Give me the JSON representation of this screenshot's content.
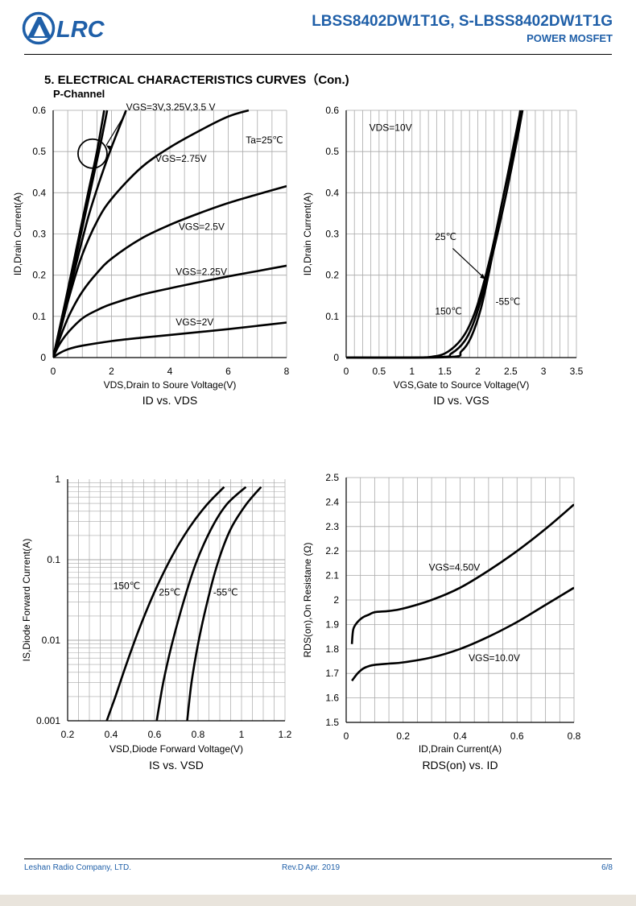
{
  "header": {
    "logo_text": "LRC",
    "part_title": "LBSS8402DW1T1G, S-LBSS8402DW1T1G",
    "subtitle": "POWER MOSFET"
  },
  "section_title": "5. ELECTRICAL CHARACTERISTICS CURVES（Con.)",
  "channel_label": "P-Channel",
  "colors": {
    "brand": "#1f5fa8",
    "grid": "#a9a9a9",
    "curve": "#000000",
    "footer_band": "#e9e4dc"
  },
  "footer": {
    "company": "Leshan Radio Company, LTD.",
    "revision": "Rev.D   Apr.   2019",
    "page": "6/8"
  },
  "chart_data": [
    {
      "id": "c1",
      "type": "line",
      "caption": "ID vs. VDS",
      "title": "",
      "xlabel": "VDS,Drain to Soure Voltage(V)",
      "ylabel": "ID,Drain Current(A)",
      "xlim": [
        0,
        8
      ],
      "ylim": [
        0,
        0.6
      ],
      "xticks": [
        0,
        2,
        4,
        6,
        8
      ],
      "yticks": [
        0,
        0.1,
        0.2,
        0.3,
        0.4,
        0.5,
        0.6
      ],
      "yscale": "linear",
      "grid": true,
      "series": [
        {
          "name": "VGS=2V",
          "x": [
            0,
            0.2,
            0.5,
            1,
            2,
            3,
            4,
            5,
            6,
            7,
            8
          ],
          "y": [
            0,
            0.01,
            0.02,
            0.029,
            0.04,
            0.048,
            0.055,
            0.062,
            0.069,
            0.077,
            0.085
          ]
        },
        {
          "name": "VGS=2.25V",
          "x": [
            0,
            0.2,
            0.5,
            1,
            1.5,
            2,
            3,
            4,
            5,
            6,
            7,
            8
          ],
          "y": [
            0,
            0.03,
            0.06,
            0.095,
            0.115,
            0.13,
            0.152,
            0.168,
            0.183,
            0.197,
            0.21,
            0.223
          ]
        },
        {
          "name": "VGS=2.5V",
          "x": [
            0,
            0.3,
            0.6,
            1,
            1.5,
            2,
            3,
            4,
            5,
            6,
            7,
            8
          ],
          "y": [
            0,
            0.06,
            0.11,
            0.16,
            0.205,
            0.24,
            0.288,
            0.322,
            0.35,
            0.375,
            0.396,
            0.416
          ]
        },
        {
          "name": "VGS=2.75V",
          "x": [
            0,
            0.3,
            0.6,
            1,
            1.5,
            2,
            3,
            4,
            5,
            6,
            6.7
          ],
          "y": [
            0,
            0.08,
            0.16,
            0.25,
            0.33,
            0.385,
            0.46,
            0.51,
            0.55,
            0.585,
            0.6
          ]
        },
        {
          "name": "VGS=3V",
          "x": [
            0,
            0.4,
            0.8,
            1.2,
            1.6,
            2,
            2.5
          ],
          "y": [
            0,
            0.115,
            0.23,
            0.34,
            0.43,
            0.51,
            0.6
          ]
        },
        {
          "name": "VGS=3.25V",
          "x": [
            0,
            0.4,
            0.8,
            1.2,
            1.6,
            1.85
          ],
          "y": [
            0,
            0.125,
            0.25,
            0.38,
            0.51,
            0.6
          ]
        },
        {
          "name": "VGS=3.5V",
          "x": [
            0,
            0.4,
            0.8,
            1.2,
            1.5,
            1.75
          ],
          "y": [
            0,
            0.13,
            0.265,
            0.4,
            0.5,
            0.6
          ]
        }
      ],
      "annotations": [
        {
          "text": "VGS=3V,3.25V,3.5 V",
          "x": 2.5,
          "y": 0.6
        },
        {
          "text": "Ta=25℃",
          "x": 6.6,
          "y": 0.52
        },
        {
          "text": "VGS=2.75V",
          "x": 3.5,
          "y": 0.475
        },
        {
          "text": "VGS=2.5V",
          "x": 4.3,
          "y": 0.31
        },
        {
          "text": "VGS=2.25V",
          "x": 4.2,
          "y": 0.2
        },
        {
          "text": "VGS=2V",
          "x": 4.2,
          "y": 0.078
        }
      ]
    },
    {
      "id": "c2",
      "type": "line",
      "caption": "ID vs. VGS",
      "title": "",
      "xlabel": "VGS,Gate to Source Voltage(V)",
      "ylabel": "ID,Drain Current(A)",
      "xlim": [
        0,
        3.5
      ],
      "ylim": [
        0,
        0.6
      ],
      "xticks": [
        0,
        0.5,
        1,
        1.5,
        2,
        2.5,
        3,
        3.5
      ],
      "yticks": [
        0,
        0.1,
        0.2,
        0.3,
        0.4,
        0.5,
        0.6
      ],
      "yscale": "linear",
      "grid": true,
      "series": [
        {
          "name": "150℃",
          "x": [
            0,
            1,
            1.3,
            1.5,
            1.7,
            1.85,
            2,
            2.2,
            2.4,
            2.6,
            2.65
          ],
          "y": [
            0,
            0,
            0.002,
            0.01,
            0.035,
            0.07,
            0.13,
            0.25,
            0.4,
            0.56,
            0.6
          ]
        },
        {
          "name": "25℃",
          "x": [
            0,
            1.4,
            1.6,
            1.8,
            1.95,
            2.1,
            2.3,
            2.45,
            2.6,
            2.68
          ],
          "y": [
            0,
            0.001,
            0.01,
            0.04,
            0.09,
            0.17,
            0.3,
            0.41,
            0.53,
            0.6
          ]
        },
        {
          "name": "-55℃",
          "x": [
            0,
            1.55,
            1.75,
            1.9,
            2.05,
            2.2,
            2.35,
            2.5,
            2.68
          ],
          "y": [
            0,
            0.001,
            0.015,
            0.05,
            0.12,
            0.23,
            0.36,
            0.47,
            0.6
          ]
        }
      ],
      "annotations": [
        {
          "text": "VDS=10V",
          "x": 0.35,
          "y": 0.55
        },
        {
          "text": "25℃",
          "x": 1.35,
          "y": 0.285
        },
        {
          "text": "150℃",
          "x": 1.35,
          "y": 0.105
        },
        {
          "text": "-55℃",
          "x": 2.27,
          "y": 0.128
        }
      ]
    },
    {
      "id": "c3",
      "type": "line",
      "caption": "IS vs. VSD",
      "title": "",
      "xlabel": "VSD,Diode Forward Voltage(V)",
      "ylabel": "IS,Diode Forward Current(A)",
      "xlim": [
        0.2,
        1.2
      ],
      "ylim": [
        0.001,
        1
      ],
      "xticks": [
        0.2,
        0.4,
        0.6,
        0.8,
        1,
        1.2
      ],
      "yticks": [
        0.001,
        0.01,
        0.1,
        1
      ],
      "yscale": "log",
      "grid": true,
      "series": [
        {
          "name": "150℃",
          "x": [
            0.38,
            0.42,
            0.47,
            0.53,
            0.6,
            0.68,
            0.76,
            0.84,
            0.92
          ],
          "y": [
            0.001,
            0.002,
            0.005,
            0.014,
            0.04,
            0.11,
            0.25,
            0.48,
            0.8
          ]
        },
        {
          "name": "25℃",
          "x": [
            0.61,
            0.64,
            0.68,
            0.73,
            0.79,
            0.86,
            0.93,
            1.02
          ],
          "y": [
            0.001,
            0.003,
            0.009,
            0.028,
            0.09,
            0.24,
            0.48,
            0.8
          ]
        },
        {
          "name": "-55℃",
          "x": [
            0.75,
            0.77,
            0.8,
            0.84,
            0.89,
            0.95,
            1.02,
            1.09
          ],
          "y": [
            0.001,
            0.003,
            0.009,
            0.028,
            0.09,
            0.24,
            0.48,
            0.8
          ]
        }
      ],
      "annotations": [
        {
          "text": "150℃",
          "x": 0.41,
          "y": 0.043
        },
        {
          "text": "25℃",
          "x": 0.62,
          "y": 0.036
        },
        {
          "text": "-55℃",
          "x": 0.87,
          "y": 0.036
        }
      ]
    },
    {
      "id": "c4",
      "type": "line",
      "caption": "RDS(on) vs. ID",
      "title": "",
      "xlabel": "ID,Drain Current(A)",
      "ylabel": "RDS(on),On Resistane (Ω)",
      "xlim": [
        0,
        0.8
      ],
      "ylim": [
        1.5,
        2.5
      ],
      "xticks": [
        0,
        0.2,
        0.4,
        0.6,
        0.8
      ],
      "yticks": [
        1.5,
        1.6,
        1.7,
        1.8,
        1.9,
        2.0,
        2.1,
        2.2,
        2.3,
        2.4,
        2.5
      ],
      "yticklabels": [
        "1.5",
        "1.6",
        "1.7",
        "1.8",
        "1.9",
        "2",
        "2.1",
        "2.2",
        "2.3",
        "2.4",
        "2.5"
      ],
      "yscale": "linear",
      "grid": true,
      "series": [
        {
          "name": "VGS=4.50V",
          "x": [
            0.02,
            0.025,
            0.04,
            0.06,
            0.08,
            0.1,
            0.15,
            0.2,
            0.3,
            0.4,
            0.5,
            0.6,
            0.7,
            0.8
          ],
          "y": [
            1.82,
            1.88,
            1.91,
            1.93,
            1.94,
            1.95,
            1.955,
            1.965,
            2.0,
            2.05,
            2.12,
            2.2,
            2.29,
            2.39
          ]
        },
        {
          "name": "VGS=10.0V",
          "x": [
            0.02,
            0.04,
            0.06,
            0.08,
            0.1,
            0.15,
            0.2,
            0.3,
            0.4,
            0.5,
            0.6,
            0.7,
            0.8
          ],
          "y": [
            1.67,
            1.7,
            1.72,
            1.73,
            1.735,
            1.74,
            1.745,
            1.765,
            1.8,
            1.85,
            1.91,
            1.98,
            2.05
          ]
        }
      ],
      "annotations": [
        {
          "text": "VGS=4.50V",
          "x": 0.29,
          "y": 2.12
        },
        {
          "text": "VGS=10.0V",
          "x": 0.43,
          "y": 1.75
        }
      ]
    }
  ]
}
